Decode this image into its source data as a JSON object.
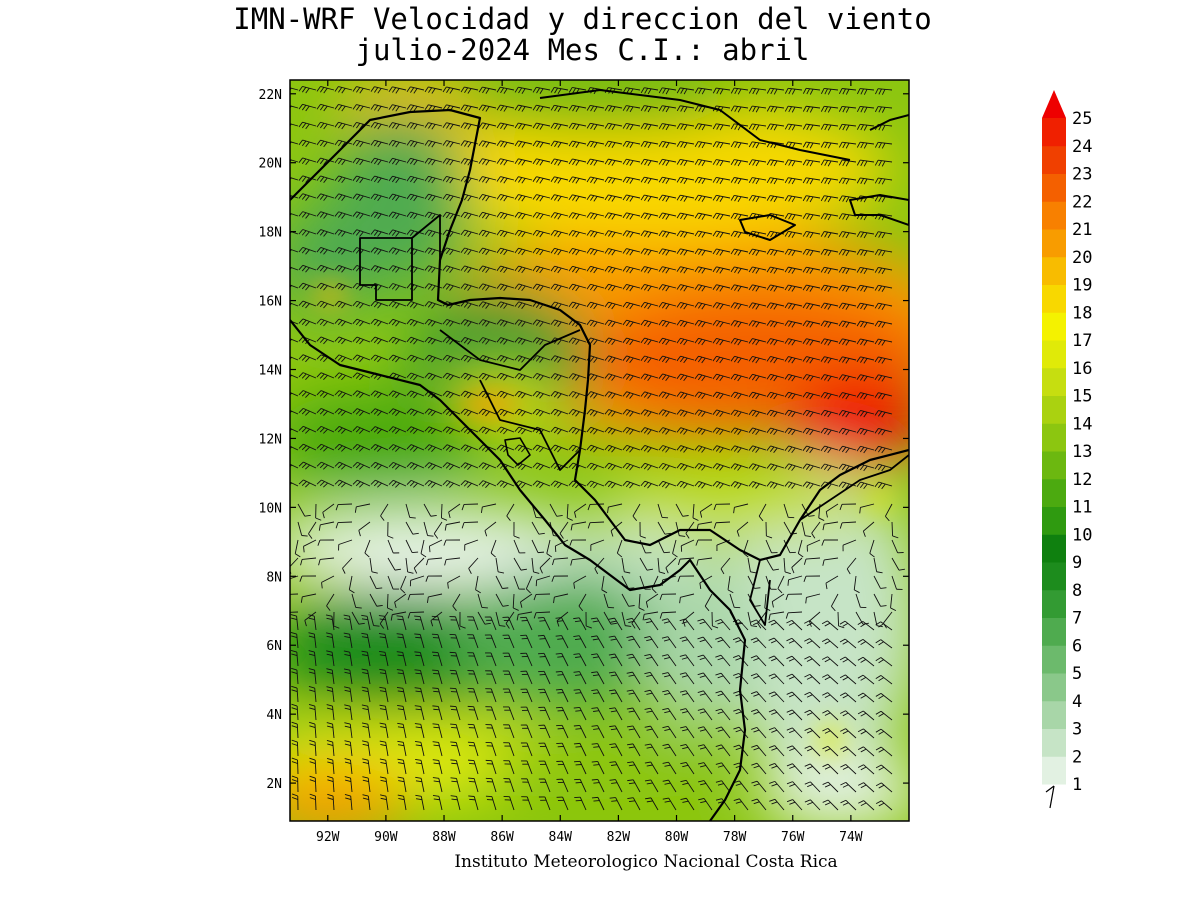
{
  "title": {
    "line1": "IMN-WRF Velocidad y direccion del viento",
    "line2": "julio-2024 Mes C.I.: abril"
  },
  "credit": "Instituto Meteorologico Nacional Costa Rica",
  "map": {
    "lon_range": [
      -93.3,
      -72.0
    ],
    "lat_range": [
      0.9,
      22.4
    ],
    "lat_labels": [
      "22N",
      "20N",
      "18N",
      "16N",
      "14N",
      "12N",
      "10N",
      "8N",
      "6N",
      "4N",
      "2N"
    ],
    "lat_values": [
      22,
      20,
      18,
      16,
      14,
      12,
      10,
      8,
      6,
      4,
      2
    ],
    "lon_labels": [
      "92W",
      "90W",
      "88W",
      "86W",
      "84W",
      "82W",
      "80W",
      "78W",
      "76W",
      "74W"
    ],
    "lon_values": [
      -92,
      -90,
      -88,
      -86,
      -84,
      -82,
      -80,
      -78,
      -76,
      -74
    ]
  },
  "colorbar": {
    "labels": [
      "1",
      "2",
      "3",
      "4",
      "5",
      "6",
      "7",
      "8",
      "9",
      "10",
      "11",
      "12",
      "13",
      "14",
      "15",
      "16",
      "17",
      "18",
      "19",
      "20",
      "21",
      "22",
      "23",
      "24",
      "25"
    ],
    "colors": [
      "#e2f1e2",
      "#c6e4c6",
      "#a8d6a8",
      "#8ac88a",
      "#6cba6c",
      "#4fab4f",
      "#339b33",
      "#1d8c1d",
      "#0f800f",
      "#2f9a10",
      "#4caa10",
      "#6cb810",
      "#8cc610",
      "#aad210",
      "#c6de10",
      "#e0ea08",
      "#f4f200",
      "#f8d800",
      "#f8bc00",
      "#f89c00",
      "#f88000",
      "#f46000",
      "#f04000",
      "#f02000",
      "#ee0000"
    ],
    "units_glyph": "wind-barb-icon"
  }
}
